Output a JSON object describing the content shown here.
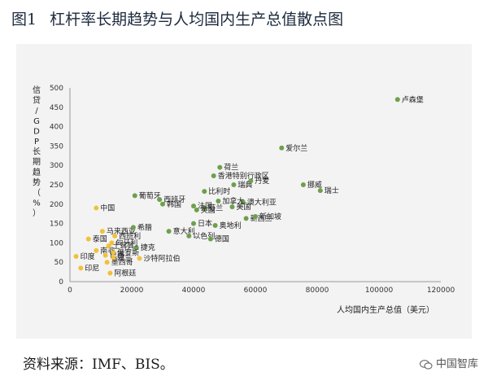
{
  "title": {
    "figure_no": "图1",
    "text": "杠杆率长期趋势与人均国内生产总值散点图"
  },
  "source": "资料来源：IMF、BIS。",
  "watermark": {
    "icon": "wechat-icon",
    "text": "中国智库"
  },
  "chart_data": {
    "type": "scatter",
    "xlabel": "人均国内生产总值（美元）",
    "ylabel": "信贷/GDP长期趋势（%）",
    "xlim": [
      0,
      120000
    ],
    "ylim": [
      0,
      500
    ],
    "xticks": [
      0,
      20000,
      40000,
      60000,
      80000,
      100000,
      120000
    ],
    "yticks": [
      0,
      50,
      100,
      150,
      200,
      250,
      300,
      350,
      400,
      450,
      500
    ],
    "grid": false,
    "colors": {
      "advanced": "#6ea04c",
      "emerging": "#f0c23a"
    },
    "points": [
      {
        "label": "卢森堡",
        "x": 106000,
        "y": 470,
        "group": "advanced"
      },
      {
        "label": "爱尔兰",
        "x": 68500,
        "y": 345,
        "group": "advanced"
      },
      {
        "label": "荷兰",
        "x": 48500,
        "y": 295,
        "group": "advanced"
      },
      {
        "label": "香港特别行政区",
        "x": 46500,
        "y": 273,
        "group": "advanced"
      },
      {
        "label": "挪威",
        "x": 75500,
        "y": 250,
        "group": "advanced"
      },
      {
        "label": "瑞士",
        "x": 81000,
        "y": 235,
        "group": "advanced"
      },
      {
        "label": "瑞典",
        "x": 53000,
        "y": 250,
        "group": "advanced"
      },
      {
        "label": "丹麦",
        "x": 58500,
        "y": 260,
        "group": "advanced"
      },
      {
        "label": "比利时",
        "x": 43500,
        "y": 233,
        "group": "advanced"
      },
      {
        "label": "葡萄牙",
        "x": 21000,
        "y": 222,
        "group": "advanced"
      },
      {
        "label": "西班牙",
        "x": 29000,
        "y": 212,
        "group": "advanced"
      },
      {
        "label": "韩国",
        "x": 30000,
        "y": 200,
        "group": "advanced"
      },
      {
        "label": "澳大利亚",
        "x": 56000,
        "y": 205,
        "group": "advanced"
      },
      {
        "label": "加拿大",
        "x": 48000,
        "y": 208,
        "group": "advanced"
      },
      {
        "label": "法国",
        "x": 40000,
        "y": 195,
        "group": "advanced"
      },
      {
        "label": "美国",
        "x": 52500,
        "y": 193,
        "group": "advanced"
      },
      {
        "label": "芬兰",
        "x": 43500,
        "y": 190,
        "group": "advanced"
      },
      {
        "label": "英国",
        "x": 41000,
        "y": 185,
        "group": "advanced"
      },
      {
        "label": "中国",
        "x": 8500,
        "y": 190,
        "group": "emerging"
      },
      {
        "label": "日本",
        "x": 40000,
        "y": 150,
        "group": "advanced"
      },
      {
        "label": "奥地利",
        "x": 47000,
        "y": 145,
        "group": "advanced"
      },
      {
        "label": "新西兰",
        "x": 57000,
        "y": 163,
        "group": "advanced"
      },
      {
        "label": "新加坡",
        "x": 60000,
        "y": 168,
        "group": "advanced"
      },
      {
        "label": "意大利",
        "x": 32000,
        "y": 130,
        "group": "advanced"
      },
      {
        "label": "以色列",
        "x": 38500,
        "y": 118,
        "group": "advanced"
      },
      {
        "label": "德国",
        "x": 45500,
        "y": 110,
        "group": "advanced"
      },
      {
        "label": "马来西亚",
        "x": 10500,
        "y": 130,
        "group": "emerging"
      },
      {
        "label": "希腊",
        "x": 20500,
        "y": 140,
        "group": "advanced"
      },
      {
        "label": "泰国",
        "x": 6000,
        "y": 110,
        "group": "emerging"
      },
      {
        "label": "西班利",
        "x": 14500,
        "y": 118,
        "group": "emerging"
      },
      {
        "label": "捷克",
        "x": 21500,
        "y": 88,
        "group": "advanced"
      },
      {
        "label": "南非",
        "x": 8500,
        "y": 80,
        "group": "emerging"
      },
      {
        "label": "沙特阿拉伯",
        "x": 22500,
        "y": 60,
        "group": "emerging"
      },
      {
        "label": "印度",
        "x": 2000,
        "y": 65,
        "group": "emerging"
      },
      {
        "label": "印尼",
        "x": 3500,
        "y": 35,
        "group": "emerging"
      },
      {
        "label": "阿根廷",
        "x": 13000,
        "y": 22,
        "group": "emerging"
      },
      {
        "label": "墨西哥",
        "x": 12000,
        "y": 50,
        "group": "emerging"
      },
      {
        "label": "巴西",
        "x": 11500,
        "y": 68,
        "group": "emerging"
      },
      {
        "label": "土耳其",
        "x": 12500,
        "y": 92,
        "group": "emerging"
      },
      {
        "label": "俄罗斯",
        "x": 14000,
        "y": 75,
        "group": "emerging"
      },
      {
        "label": "匈牙利",
        "x": 13500,
        "y": 100,
        "group": "emerging"
      },
      {
        "label": "波兰",
        "x": 14000,
        "y": 62,
        "group": "emerging"
      }
    ]
  }
}
